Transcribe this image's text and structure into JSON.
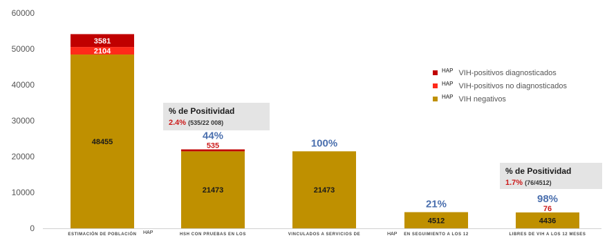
{
  "chart_data": {
    "type": "bar",
    "stacked": true,
    "yticks": [
      0,
      10000,
      20000,
      30000,
      40000,
      50000,
      60000
    ],
    "ylim": [
      0,
      60000
    ],
    "categories": [
      "ESTIMACIÓN DE POBLACIÓN",
      "HSH CON PRUEBAS EN LOS",
      "VINCULADOS A SERVICIOS DE",
      "EN SEGUIMIENTO A LOS 12",
      "LIBRES DE VIH A LOS 12 MESES"
    ],
    "series": [
      {
        "name": "VIH negativos",
        "color": "#bf9000",
        "values": [
          48455,
          21473,
          21473,
          4512,
          4436
        ]
      },
      {
        "name": "VIH-positivos no diagnosticados",
        "color": "#ff2a1a",
        "values": [
          2104,
          0,
          0,
          0,
          0
        ]
      },
      {
        "name": "VIH-positivos diagnosticados",
        "color": "#c00000",
        "values": [
          3581,
          535,
          0,
          0,
          0
        ]
      }
    ],
    "bar_labels": [
      {
        "index": 0,
        "text": "48455",
        "series": 0
      },
      {
        "index": 0,
        "text": "2104",
        "series": 1
      },
      {
        "index": 0,
        "text": "3581",
        "series": 2
      },
      {
        "index": 1,
        "text": "21473",
        "series": 0
      },
      {
        "index": 2,
        "text": "21473",
        "series": 0
      },
      {
        "index": 3,
        "text": "4512",
        "series": 0
      },
      {
        "index": 4,
        "text": "4436",
        "series": 0
      }
    ],
    "above_labels": [
      {
        "index": 1,
        "pct": "44%",
        "red": "535"
      },
      {
        "index": 2,
        "pct": "100%",
        "red": ""
      },
      {
        "index": 3,
        "pct": "21%",
        "red": ""
      },
      {
        "index": 4,
        "pct": "98%",
        "red": "76"
      }
    ],
    "hap_marker": "HAP",
    "legend": [
      {
        "hap": "HAP",
        "label": "VIH-positivos diagnosticados",
        "color": "#c00000"
      },
      {
        "hap": "HAP",
        "label": "VIH-positivos no diagnosticados",
        "color": "#ff2a1a"
      },
      {
        "hap": "HAP",
        "label": "VIH negativos",
        "color": "#bf9000"
      }
    ]
  },
  "positivity_boxes": [
    {
      "title": "% de Positividad",
      "value": "2.4%",
      "detail": "(535/22 008)"
    },
    {
      "title": "% de Positividad",
      "value": "1.7%",
      "detail": "(76/4512)"
    }
  ]
}
